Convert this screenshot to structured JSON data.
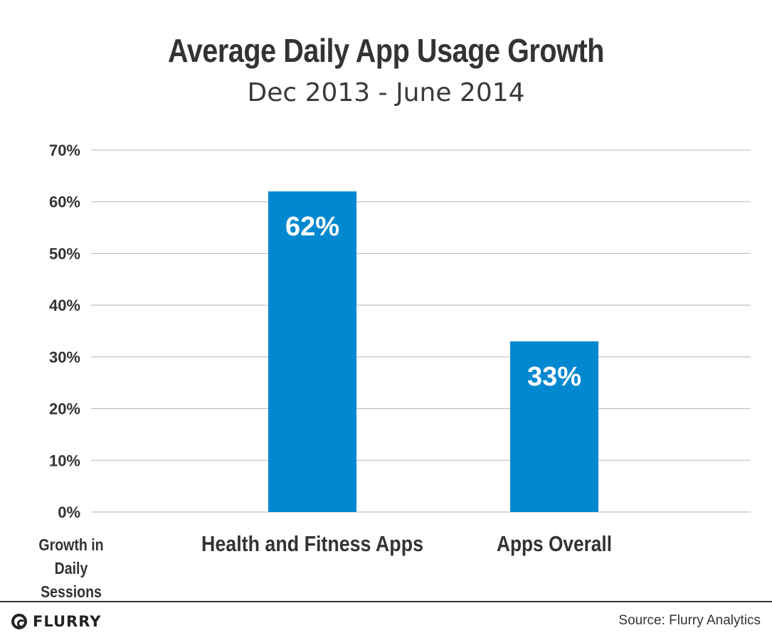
{
  "chart_data": {
    "type": "bar",
    "title": "Average Daily App Usage Growth",
    "subtitle": "Dec 2013 - June 2014",
    "categories": [
      "Health and Fitness Apps",
      "Apps Overall"
    ],
    "values": [
      62,
      33
    ],
    "data_labels": [
      "62%",
      "33%"
    ],
    "ylabel": "Growth in Daily Sessions",
    "ylim": [
      0,
      70
    ],
    "yticks": [
      0,
      10,
      20,
      30,
      40,
      50,
      60,
      70
    ],
    "ytick_labels": [
      "0%",
      "10%",
      "20%",
      "30%",
      "40%",
      "50%",
      "60%",
      "70%"
    ],
    "grid": true,
    "bar_color": "#0088d1",
    "label_color": "#ffffff"
  },
  "footer": {
    "logo_text": "FLURRY",
    "source": "Source: Flurry Analytics"
  },
  "colors": {
    "text": "#333333",
    "grid": "#b5b5b5",
    "bar": "#0088d1"
  }
}
